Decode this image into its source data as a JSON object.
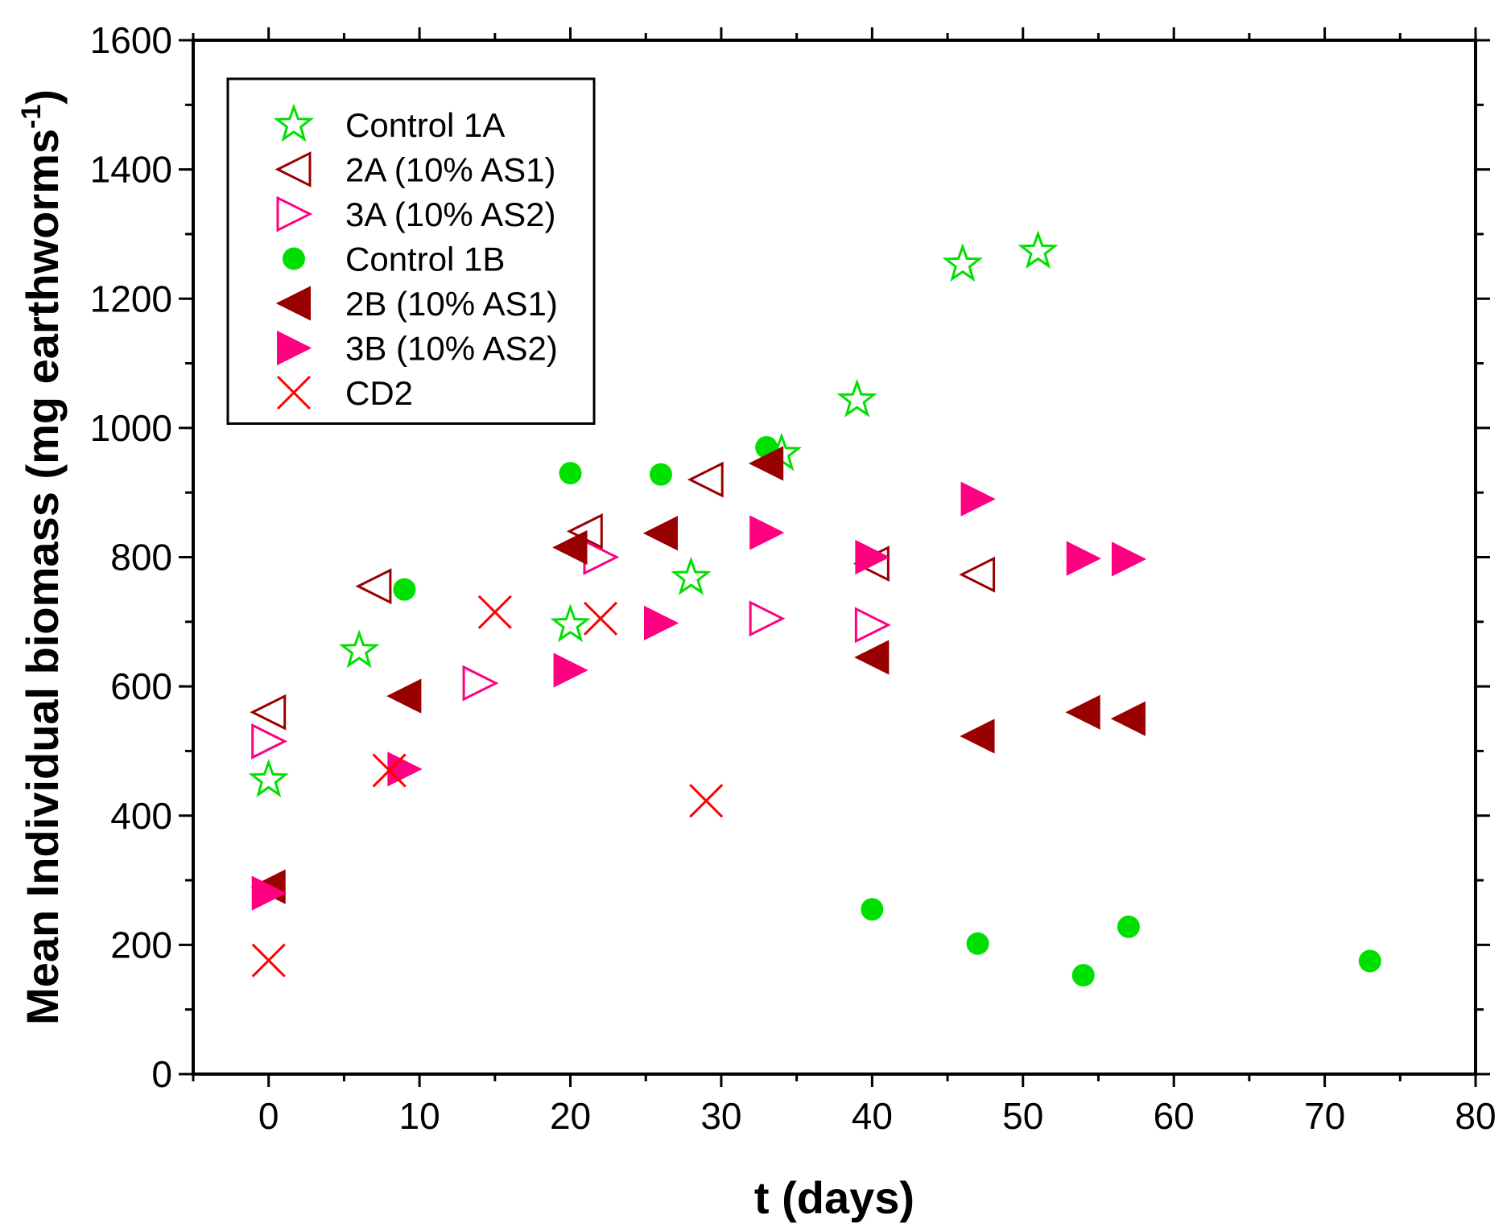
{
  "chart_data": {
    "type": "scatter",
    "title": "",
    "xlabel": "t (days)",
    "ylabel": "Mean Individual biomass (mg earthworms",
    "ylabel_sup": "-1",
    "ylabel_close": ")",
    "xlim": [
      -5,
      80
    ],
    "ylim": [
      0,
      1600
    ],
    "xticks": [
      0,
      10,
      20,
      30,
      40,
      50,
      60,
      70,
      80
    ],
    "yticks": [
      0,
      200,
      400,
      600,
      800,
      1000,
      1200,
      1400,
      1600
    ],
    "grid": false,
    "legend_position": "top-left",
    "series": [
      {
        "name": "Control 1A",
        "marker": "star-open",
        "color": "#00e000",
        "points": [
          [
            0,
            455
          ],
          [
            6,
            655
          ],
          [
            20,
            695
          ],
          [
            28,
            768
          ],
          [
            34,
            960
          ],
          [
            39,
            1043
          ],
          [
            46,
            1253
          ],
          [
            51,
            1273
          ]
        ]
      },
      {
        "name": "2A (10% AS1)",
        "marker": "triangle-left-open",
        "color": "#990000",
        "points": [
          [
            0,
            560
          ],
          [
            7,
            755
          ],
          [
            21,
            840
          ],
          [
            29,
            920
          ],
          [
            40,
            790
          ],
          [
            47,
            773
          ]
        ]
      },
      {
        "name": "3A (10% AS2)",
        "marker": "triangle-right-open",
        "color": "#ff0080",
        "points": [
          [
            0,
            515
          ],
          [
            14,
            605
          ],
          [
            22,
            800
          ],
          [
            33,
            705
          ],
          [
            40,
            695
          ]
        ]
      },
      {
        "name": "Control 1B",
        "marker": "circle-filled",
        "color": "#00e000",
        "points": [
          [
            9,
            750
          ],
          [
            20,
            930
          ],
          [
            26,
            928
          ],
          [
            33,
            970
          ],
          [
            40,
            255
          ],
          [
            47,
            202
          ],
          [
            54,
            153
          ],
          [
            57,
            228
          ],
          [
            73,
            175
          ]
        ]
      },
      {
        "name": "2B (10% AS1)",
        "marker": "triangle-left-filled",
        "color": "#990000",
        "points": [
          [
            0,
            290
          ],
          [
            9,
            585
          ],
          [
            20,
            815
          ],
          [
            26,
            837
          ],
          [
            33,
            945
          ],
          [
            40,
            645
          ],
          [
            47,
            523
          ],
          [
            54,
            560
          ],
          [
            57,
            550
          ]
        ]
      },
      {
        "name": "3B (10% AS2)",
        "marker": "triangle-right-filled",
        "color": "#ff0080",
        "points": [
          [
            0,
            280
          ],
          [
            9,
            472
          ],
          [
            20,
            625
          ],
          [
            26,
            698
          ],
          [
            33,
            838
          ],
          [
            40,
            800
          ],
          [
            47,
            890
          ],
          [
            54,
            798
          ],
          [
            57,
            797
          ]
        ]
      },
      {
        "name": "CD2",
        "marker": "cross",
        "color": "#ff0000",
        "points": [
          [
            0,
            176
          ],
          [
            8,
            470
          ],
          [
            15,
            715
          ],
          [
            22,
            705
          ],
          [
            29,
            423
          ]
        ]
      }
    ]
  }
}
